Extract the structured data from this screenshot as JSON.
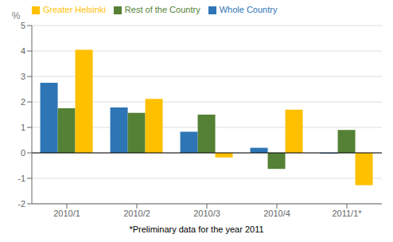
{
  "chart_data": {
    "type": "bar",
    "categories": [
      "2010/1",
      "2010/2",
      "2010/3",
      "2010/4",
      "2011/1*"
    ],
    "series": [
      {
        "name": "Whole Country",
        "color": "#2E75B6",
        "values": [
          2.75,
          1.78,
          0.83,
          0.2,
          -0.03
        ]
      },
      {
        "name": "Rest of the Country",
        "color": "#548135",
        "values": [
          1.75,
          1.57,
          1.5,
          -0.63,
          0.9
        ]
      },
      {
        "name": "Greater Helsinki",
        "color": "#FFC000",
        "values": [
          4.05,
          2.12,
          -0.18,
          1.7,
          -1.27
        ]
      }
    ],
    "ylabel": "%",
    "ylim": [
      -2,
      5
    ],
    "yticks": [
      -2,
      -1,
      0,
      1,
      2,
      3,
      4,
      5
    ],
    "grid": true,
    "legend": "upper left",
    "annotations": [
      "*Preliminary data for the year 2011"
    ]
  }
}
